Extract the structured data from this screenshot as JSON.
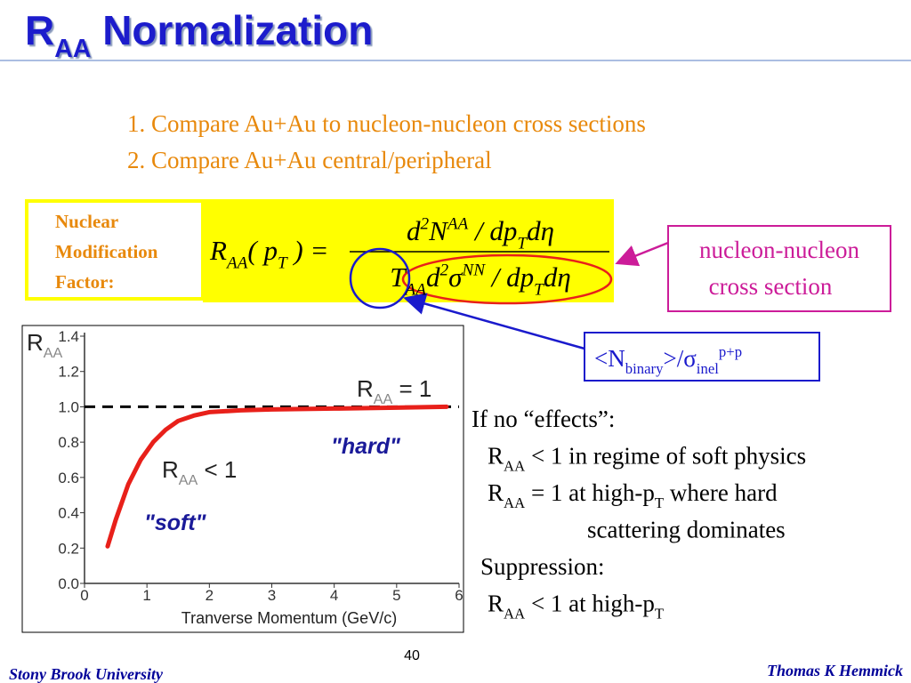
{
  "title": [
    {
      "text": "R"
    },
    {
      "sub": "AA"
    },
    {
      "text": " Normalization"
    }
  ],
  "points": [
    "1. Compare Au+Au to nucleon-nucleon cross sections",
    "2. Compare Au+Au central/peripheral"
  ],
  "factor_label": [
    "Nuclear",
    "Modification",
    "Factor:"
  ],
  "formula": {
    "lhs": [
      {
        "text": "R"
      },
      {
        "sub": "AA"
      },
      {
        "text": "( p"
      },
      {
        "sub": "T"
      },
      {
        "text": " ) ="
      }
    ],
    "numerator": [
      {
        "text": "d"
      },
      {
        "sup": "2"
      },
      {
        "text": "N"
      },
      {
        "sup": "AA"
      },
      {
        "text": " / dp"
      },
      {
        "sub": "T"
      },
      {
        "text": "dη"
      }
    ],
    "denominator": [
      {
        "text": "T"
      },
      {
        "sub": "AA"
      },
      {
        "text": "d"
      },
      {
        "sup": "2"
      },
      {
        "text": "σ"
      },
      {
        "sup": "NN"
      },
      {
        "text": " / dp"
      },
      {
        "sub": "T"
      },
      {
        "text": "dη"
      }
    ]
  },
  "nn_box": [
    "nucleon-nucleon",
    "cross section"
  ],
  "binary_box": [
    {
      "text": "<N"
    },
    {
      "sub": "binary"
    },
    {
      "text": ">/σ"
    },
    {
      "sub": "inel"
    },
    {
      "sup": "p+p"
    }
  ],
  "notes": [
    [
      {
        "text": "If no “effects”:"
      }
    ],
    [
      {
        "text": "R"
      },
      {
        "sub": "AA"
      },
      {
        "text": " < 1 in regime of soft physics"
      }
    ],
    [
      {
        "text": "R"
      },
      {
        "sub": "AA"
      },
      {
        "text": " = 1 at high-p"
      },
      {
        "sub": "T"
      },
      {
        "text": " where hard"
      }
    ],
    [
      {
        "text": "scattering dominates"
      }
    ],
    [
      {
        "text": "Suppression:"
      }
    ],
    [
      {
        "text": "R"
      },
      {
        "sub": "AA"
      },
      {
        "text": " < 1 at high-p"
      },
      {
        "sub": "T"
      }
    ]
  ],
  "page_number": "40",
  "footer_left": "Stony Brook University",
  "footer_right": "Thomas K Hemmick",
  "chart_data": {
    "type": "line",
    "xlabel": "Tranverse Momentum (GeV/c)",
    "ylabel": [
      {
        "text": "R"
      },
      {
        "sub": "AA"
      }
    ],
    "xlim": [
      0,
      6
    ],
    "ylim": [
      0,
      1.4
    ],
    "xticks": [
      0,
      1,
      2,
      3,
      4,
      5,
      6
    ],
    "yticks": [
      {
        "value": 0,
        "label": "0.0"
      },
      0.2,
      0.4,
      0.6,
      0.8,
      {
        "value": 1,
        "label": "1.0"
      },
      1.2,
      1.4
    ],
    "reference_line": 1,
    "series": [
      {
        "color": "#e8201a",
        "x": [
          0.37,
          0.5,
          0.7,
          0.9,
          1.1,
          1.3,
          1.5,
          1.75,
          2,
          2.5,
          3,
          4,
          5,
          5.8
        ],
        "values": [
          0.21,
          0.36,
          0.56,
          0.7,
          0.8,
          0.87,
          0.92,
          0.95,
          0.97,
          0.98,
          0.985,
          0.99,
          0.995,
          1.0
        ]
      }
    ],
    "annotations": [
      [
        {
          "text": "R"
        },
        {
          "sub": "AA"
        },
        {
          "text": " = 1"
        }
      ],
      [
        {
          "text": "\"hard\""
        }
      ],
      [
        {
          "text": "R"
        },
        {
          "sub": "AA"
        },
        {
          "text": " < 1"
        }
      ],
      [
        {
          "text": "\"soft\""
        }
      ]
    ]
  }
}
